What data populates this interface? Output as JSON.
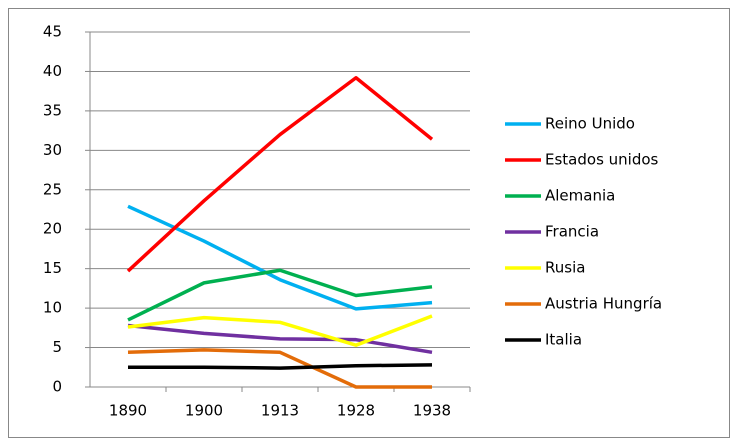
{
  "chart_data": {
    "type": "line",
    "categories": [
      "1890",
      "1900",
      "1913",
      "1928",
      "1938"
    ],
    "series": [
      {
        "name": "Reino Unido",
        "color": "#00b0f0",
        "values": [
          22.9,
          18.5,
          13.6,
          9.9,
          10.7
        ]
      },
      {
        "name": "Estados unidos",
        "color": "#ff0000",
        "values": [
          14.7,
          23.6,
          32.0,
          39.2,
          31.4
        ]
      },
      {
        "name": "Alemania",
        "color": "#00b050",
        "values": [
          8.5,
          13.2,
          14.8,
          11.6,
          12.7
        ]
      },
      {
        "name": "Francia",
        "color": "#7030a0",
        "values": [
          7.8,
          6.8,
          6.1,
          6.0,
          4.4
        ]
      },
      {
        "name": "Rusia",
        "color": "#ffff00",
        "values": [
          7.6,
          8.8,
          8.2,
          5.3,
          9.0
        ]
      },
      {
        "name": "Austria Hungría",
        "color": "#e36c09",
        "values": [
          4.4,
          4.7,
          4.4,
          0,
          0
        ]
      },
      {
        "name": "Italia",
        "color": "#000000",
        "values": [
          2.5,
          2.5,
          2.4,
          2.7,
          2.8
        ]
      }
    ],
    "ylim": [
      0,
      45
    ],
    "yticks": [
      0,
      5,
      10,
      15,
      20,
      25,
      30,
      35,
      40,
      45
    ],
    "grid": true,
    "legend": "right"
  }
}
